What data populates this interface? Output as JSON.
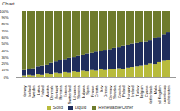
{
  "chart_data": {
    "type": "bar",
    "title": "Chart",
    "stacked": true,
    "grid": false,
    "legend": "bottom",
    "categories": [
      "Norway",
      "Iceland",
      "Sweden",
      "Latvia",
      "Finland",
      "Austria",
      "Denmark",
      "Portugal",
      "Romania",
      "Estonia",
      "Switzerland",
      "Lithuania",
      "Slovenia",
      "Bulgaria",
      "Spain",
      "France",
      "Croatia",
      "Italy",
      "Greece",
      "Germany",
      "Slovakia",
      "Czechia",
      "Poland",
      "Hungary",
      "Ireland",
      "Turkey",
      "Belgium",
      "Cyprus",
      "Netherlands",
      "Malta",
      "United Kingdom",
      "Luxembourg",
      "Liechtenstein"
    ],
    "series": [
      {
        "name": "Solid",
        "color": "#b8bb3c",
        "values": [
          2,
          3,
          2,
          4,
          3,
          5,
          4,
          6,
          5,
          7,
          6,
          8,
          7,
          9,
          8,
          10,
          9,
          11,
          10,
          12,
          11,
          13,
          12,
          14,
          15,
          16,
          17,
          18,
          20,
          19,
          22,
          24,
          25
        ]
      },
      {
        "name": "Liquid",
        "color": "#1f2d5c",
        "values": [
          8,
          9,
          11,
          12,
          14,
          13,
          17,
          17,
          20,
          20,
          23,
          22,
          25,
          24,
          27,
          26,
          29,
          28,
          31,
          30,
          33,
          32,
          35,
          34,
          35,
          35,
          36,
          36,
          36,
          40,
          38,
          40,
          42
        ]
      },
      {
        "name": "Renewable/Other",
        "color": "#6e7b2c",
        "values": [
          90,
          88,
          87,
          84,
          83,
          82,
          79,
          77,
          75,
          73,
          71,
          70,
          68,
          67,
          65,
          64,
          62,
          61,
          59,
          58,
          56,
          55,
          53,
          52,
          50,
          49,
          47,
          46,
          44,
          41,
          40,
          36,
          33
        ]
      }
    ],
    "ylim": [
      0,
      100
    ],
    "yticks": [
      {
        "value": 0,
        "label": "0%"
      },
      {
        "value": 10,
        "label": "10%"
      },
      {
        "value": 20,
        "label": "20%"
      },
      {
        "value": 30,
        "label": "30%"
      },
      {
        "value": 40,
        "label": "40%"
      },
      {
        "value": 50,
        "label": "50%"
      },
      {
        "value": 60,
        "label": "60%"
      },
      {
        "value": 70,
        "label": "70%"
      },
      {
        "value": 80,
        "label": "80%"
      },
      {
        "value": 90,
        "label": "90%"
      },
      {
        "value": 100,
        "label": "100%"
      }
    ]
  }
}
